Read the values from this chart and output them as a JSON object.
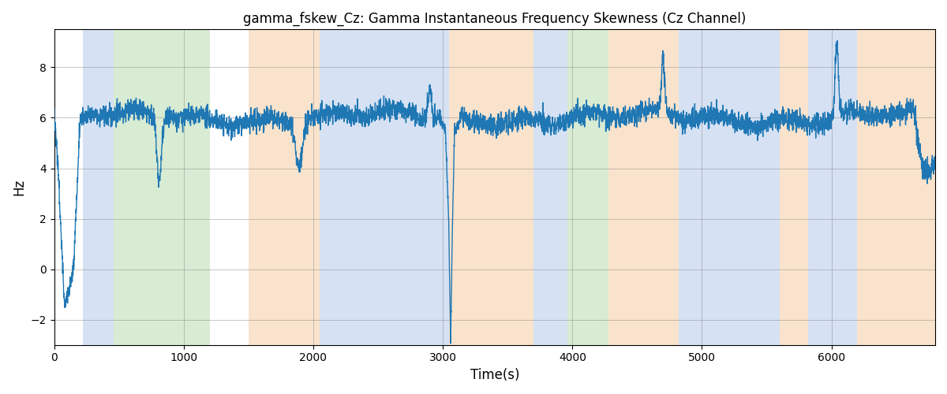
{
  "title": "gamma_fskew_Cz: Gamma Instantaneous Frequency Skewness (Cz Channel)",
  "xlabel": "Time(s)",
  "ylabel": "Hz",
  "xlim": [
    0,
    6800
  ],
  "ylim": [
    -3.0,
    9.5
  ],
  "yticks": [
    -2,
    0,
    2,
    4,
    6,
    8
  ],
  "line_color": "#1f77b4",
  "line_width": 1.0,
  "background_color": "#ffffff",
  "colored_bands": [
    {
      "xmin": 220,
      "xmax": 460,
      "color": "#aec6e8",
      "alpha": 0.5
    },
    {
      "xmin": 460,
      "xmax": 1200,
      "color": "#b2d8a8",
      "alpha": 0.5
    },
    {
      "xmin": 1500,
      "xmax": 2050,
      "color": "#f5c99a",
      "alpha": 0.5
    },
    {
      "xmin": 2050,
      "xmax": 3050,
      "color": "#aec6e8",
      "alpha": 0.5
    },
    {
      "xmin": 3050,
      "xmax": 3700,
      "color": "#f5c99a",
      "alpha": 0.5
    },
    {
      "xmin": 3700,
      "xmax": 3960,
      "color": "#aec6e8",
      "alpha": 0.5
    },
    {
      "xmin": 3960,
      "xmax": 4280,
      "color": "#b2d8a8",
      "alpha": 0.5
    },
    {
      "xmin": 4280,
      "xmax": 4820,
      "color": "#f5c99a",
      "alpha": 0.5
    },
    {
      "xmin": 4820,
      "xmax": 5600,
      "color": "#aec6e8",
      "alpha": 0.5
    },
    {
      "xmin": 5600,
      "xmax": 5820,
      "color": "#f5c99a",
      "alpha": 0.5
    },
    {
      "xmin": 5820,
      "xmax": 6200,
      "color": "#aec6e8",
      "alpha": 0.5
    },
    {
      "xmin": 6200,
      "xmax": 6800,
      "color": "#f5c99a",
      "alpha": 0.5
    }
  ],
  "seed": 42,
  "n_points": 6700,
  "base_value": 6.0,
  "noise_std": 0.28
}
